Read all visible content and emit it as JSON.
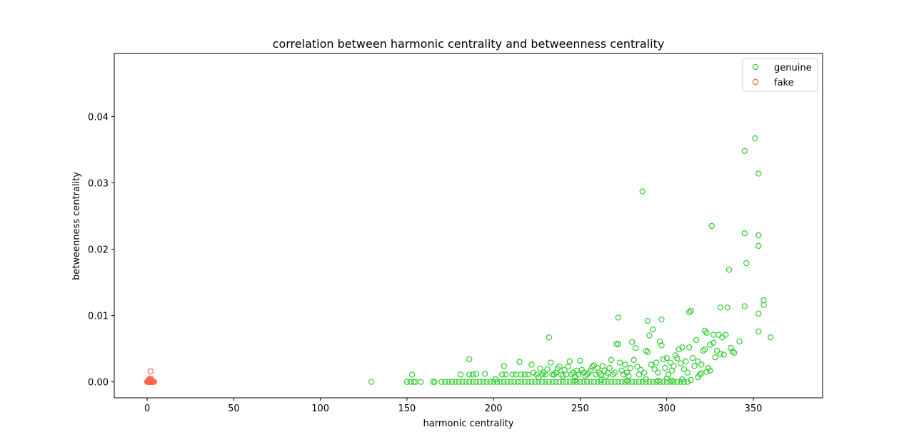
{
  "chart_data": {
    "type": "scatter",
    "title": "correlation between harmonic centrality and betweenness centrality",
    "xlabel": "harmonic centrality",
    "ylabel": "betweenness centrality",
    "xlim": [
      -19,
      390
    ],
    "ylim": [
      -0.0024,
      0.0495
    ],
    "xticks": [
      0,
      50,
      100,
      150,
      200,
      250,
      300,
      350
    ],
    "yticks": [
      0.0,
      0.01,
      0.02,
      0.03,
      0.04
    ],
    "ytick_labels": [
      "0.00",
      "0.01",
      "0.02",
      "0.03",
      "0.04"
    ],
    "grid": false,
    "legend_position": "top-right",
    "series": [
      {
        "name": "genuine",
        "color": "#32cd32",
        "marker": "open-circle",
        "points": [
          [
            129.5,
            0.0
          ],
          [
            150,
            0.0
          ],
          [
            152,
            0.0
          ],
          [
            154,
            0.0
          ],
          [
            155,
            0.0
          ],
          [
            158,
            0.0
          ],
          [
            153,
            0.0011
          ],
          [
            165,
            0.0
          ],
          [
            166,
            0.0
          ],
          [
            170,
            0.0
          ],
          [
            172,
            0.0
          ],
          [
            174,
            0.0
          ],
          [
            176,
            0.0
          ],
          [
            178,
            0.0
          ],
          [
            180,
            0.0
          ],
          [
            182,
            0.0
          ],
          [
            184,
            0.0
          ],
          [
            186,
            0.0
          ],
          [
            188,
            0.0
          ],
          [
            190,
            0.0
          ],
          [
            192,
            0.0
          ],
          [
            194,
            0.0
          ],
          [
            196,
            0.0
          ],
          [
            198,
            0.0
          ],
          [
            200,
            0.0
          ],
          [
            202,
            0.0
          ],
          [
            204,
            0.0
          ],
          [
            206,
            0.0
          ],
          [
            208,
            0.0
          ],
          [
            210,
            0.0
          ],
          [
            212,
            0.0
          ],
          [
            214,
            0.0
          ],
          [
            216,
            0.0
          ],
          [
            218,
            0.0
          ],
          [
            220,
            0.0
          ],
          [
            222,
            0.0
          ],
          [
            224,
            0.0
          ],
          [
            226,
            0.0
          ],
          [
            228,
            0.0
          ],
          [
            230,
            0.0
          ],
          [
            232,
            0.0
          ],
          [
            234,
            0.0
          ],
          [
            236,
            0.0
          ],
          [
            238,
            0.0
          ],
          [
            240,
            0.0
          ],
          [
            242,
            0.0
          ],
          [
            244,
            0.0
          ],
          [
            246,
            0.0
          ],
          [
            248,
            0.0
          ],
          [
            250,
            0.0
          ],
          [
            252,
            0.0
          ],
          [
            254,
            0.0
          ],
          [
            256,
            0.0
          ],
          [
            258,
            0.0
          ],
          [
            260,
            0.0
          ],
          [
            262,
            0.0
          ],
          [
            264,
            0.0
          ],
          [
            266,
            0.0
          ],
          [
            268,
            0.0
          ],
          [
            270,
            0.0
          ],
          [
            272,
            0.0
          ],
          [
            274,
            0.0
          ],
          [
            276,
            0.0
          ],
          [
            278,
            0.0
          ],
          [
            280,
            0.0
          ],
          [
            282,
            0.0
          ],
          [
            284,
            0.0
          ],
          [
            286,
            0.0
          ],
          [
            288,
            0.0
          ],
          [
            290,
            0.0
          ],
          [
            292,
            0.0
          ],
          [
            294,
            0.0
          ],
          [
            296,
            0.0
          ],
          [
            298,
            0.0
          ],
          [
            300,
            0.0
          ],
          [
            302,
            0.0
          ],
          [
            304,
            0.0
          ],
          [
            306,
            0.0
          ],
          [
            308,
            0.0
          ],
          [
            310,
            0.0
          ],
          [
            312,
            0.0
          ],
          [
            181,
            0.0011
          ],
          [
            186,
            0.0034
          ],
          [
            186,
            0.0011
          ],
          [
            188,
            0.0011
          ],
          [
            190,
            0.0012
          ],
          [
            195,
            0.0012
          ],
          [
            201,
            0.0004
          ],
          [
            205,
            0.0011
          ],
          [
            206,
            0.0024
          ],
          [
            207,
            0.0011
          ],
          [
            211,
            0.0011
          ],
          [
            213,
            0.0011
          ],
          [
            215,
            0.003
          ],
          [
            216,
            0.0011
          ],
          [
            218,
            0.0011
          ],
          [
            220,
            0.0011
          ],
          [
            222,
            0.0026
          ],
          [
            223,
            0.0014
          ],
          [
            225,
            0.0011
          ],
          [
            226,
            0.0007
          ],
          [
            227,
            0.002
          ],
          [
            228,
            0.0011
          ],
          [
            229,
            0.0014
          ],
          [
            230,
            0.0011
          ],
          [
            231,
            0.0019
          ],
          [
            232,
            0.0067
          ],
          [
            233,
            0.0029
          ],
          [
            234,
            0.0011
          ],
          [
            235,
            0.0011
          ],
          [
            236,
            0.0014
          ],
          [
            237,
            0.002
          ],
          [
            238,
            0.0023
          ],
          [
            239,
            0.0011
          ],
          [
            240,
            0.0009
          ],
          [
            241,
            0.0018
          ],
          [
            242,
            0.0011
          ],
          [
            243,
            0.0023
          ],
          [
            244,
            0.0031
          ],
          [
            245,
            0.0011
          ],
          [
            246,
            0.0014
          ],
          [
            247,
            0.0008
          ],
          [
            248,
            0.0017
          ],
          [
            249,
            0.0011
          ],
          [
            250,
            0.0032
          ],
          [
            251,
            0.0018
          ],
          [
            252,
            0.0014
          ],
          [
            253,
            0.0009
          ],
          [
            254,
            0.0011
          ],
          [
            255,
            0.0014
          ],
          [
            256,
            0.0017
          ],
          [
            257,
            0.0023
          ],
          [
            258,
            0.0025
          ],
          [
            259,
            0.0011
          ],
          [
            260,
            0.0021
          ],
          [
            261,
            0.0014
          ],
          [
            262,
            0.0011
          ],
          [
            263,
            0.0024
          ],
          [
            264,
            0.0017
          ],
          [
            265,
            0.0009
          ],
          [
            266,
            0.0013
          ],
          [
            267,
            0.0021
          ],
          [
            268,
            0.0033
          ],
          [
            269,
            0.0011
          ],
          [
            270,
            0.0014
          ],
          [
            271,
            0.0057
          ],
          [
            272,
            0.0057
          ],
          [
            272,
            0.0097
          ],
          [
            273,
            0.0029
          ],
          [
            274,
            0.0017
          ],
          [
            275,
            0.0011
          ],
          [
            276,
            0.0026
          ],
          [
            277,
            0.0014
          ],
          [
            278,
            0.0009
          ],
          [
            279,
            0.0021
          ],
          [
            280,
            0.006
          ],
          [
            281,
            0.0033
          ],
          [
            282,
            0.0051
          ],
          [
            283,
            0.0023
          ],
          [
            284,
            0.0011
          ],
          [
            285,
            0.0018
          ],
          [
            286,
            0.0287
          ],
          [
            287,
            0.0014
          ],
          [
            288,
            0.0047
          ],
          [
            289,
            0.0045
          ],
          [
            289,
            0.0092
          ],
          [
            290,
            0.007
          ],
          [
            291,
            0.0026
          ],
          [
            292,
            0.0079
          ],
          [
            293,
            0.0019
          ],
          [
            294,
            0.0029
          ],
          [
            295,
            0.0014
          ],
          [
            296,
            0.0061
          ],
          [
            297,
            0.0055
          ],
          [
            297,
            0.0094
          ],
          [
            298,
            0.0034
          ],
          [
            299,
            0.0021
          ],
          [
            300,
            0.0036
          ],
          [
            301,
            0.0011
          ],
          [
            302,
            0.0029
          ],
          [
            303,
            0.0017
          ],
          [
            304,
            0.0024
          ],
          [
            305,
            0.004
          ],
          [
            306,
            0.0036
          ],
          [
            307,
            0.0049
          ],
          [
            308,
            0.0028
          ],
          [
            309,
            0.0052
          ],
          [
            310,
            0.0019
          ],
          [
            311,
            0.0031
          ],
          [
            312,
            0.0014
          ],
          [
            313,
            0.0052
          ],
          [
            313,
            0.0105
          ],
          [
            314,
            0.0107
          ],
          [
            315,
            0.0036
          ],
          [
            316,
            0.0024
          ],
          [
            317,
            0.0063
          ],
          [
            318,
            0.0031
          ],
          [
            319,
            0.0011
          ],
          [
            320,
            0.0026
          ],
          [
            321,
            0.0047
          ],
          [
            322,
            0.0077
          ],
          [
            322,
            0.0049
          ],
          [
            323,
            0.0074
          ],
          [
            324,
            0.0021
          ],
          [
            325,
            0.0056
          ],
          [
            325,
            0.0017
          ],
          [
            326,
            0.0235
          ],
          [
            327,
            0.0059
          ],
          [
            327,
            0.0071
          ],
          [
            328,
            0.0037
          ],
          [
            329,
            0.0047
          ],
          [
            330,
            0.0071
          ],
          [
            331,
            0.0112
          ],
          [
            331,
            0.0042
          ],
          [
            332,
            0.0067
          ],
          [
            333,
            0.0041
          ],
          [
            334,
            0.0071
          ],
          [
            335,
            0.0112
          ],
          [
            336,
            0.0169
          ],
          [
            337,
            0.0051
          ],
          [
            338,
            0.0046
          ],
          [
            339,
            0.0044
          ],
          [
            342,
            0.0061
          ],
          [
            345,
            0.0114
          ],
          [
            345,
            0.0224
          ],
          [
            345,
            0.0348
          ],
          [
            346,
            0.0179
          ],
          [
            351,
            0.0367
          ],
          [
            353,
            0.0314
          ],
          [
            353,
            0.0221
          ],
          [
            353,
            0.0205
          ],
          [
            353,
            0.0076
          ],
          [
            353,
            0.0103
          ],
          [
            356,
            0.0123
          ],
          [
            356,
            0.0116
          ],
          [
            360,
            0.0067
          ],
          [
            247,
            0.0002
          ],
          [
            262,
            0.0003
          ],
          [
            277,
            0.0002
          ],
          [
            288,
            0.0004
          ],
          [
            295,
            0.0002
          ],
          [
            300,
            0.0005
          ],
          [
            303,
            0.0002
          ],
          [
            309,
            0.0004
          ],
          [
            314,
            0.0003
          ],
          [
            318,
            0.0007
          ],
          [
            320,
            0.0013
          ],
          [
            323,
            0.0015
          ]
        ]
      },
      {
        "name": "fake",
        "color": "#ff6347",
        "marker": "open-circle",
        "points": [
          [
            0,
            0.0
          ],
          [
            0.5,
            0.0
          ],
          [
            1,
            0.0
          ],
          [
            1.5,
            0.0
          ],
          [
            2,
            0.0
          ],
          [
            2.5,
            0.0
          ],
          [
            3,
            0.0
          ],
          [
            3.5,
            0.0
          ],
          [
            4,
            0.0
          ],
          [
            1,
            0.0003
          ],
          [
            1.5,
            0.0005
          ],
          [
            2,
            0.0002
          ],
          [
            2.5,
            0.0004
          ],
          [
            2,
            0.0016
          ],
          [
            0.5,
            0.0002
          ]
        ]
      }
    ]
  }
}
